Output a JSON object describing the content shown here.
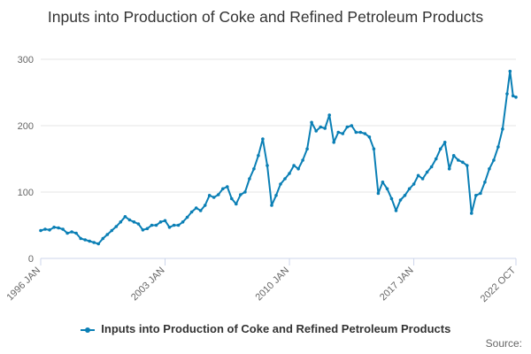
{
  "colors": {
    "series": "#0a7fb5",
    "grid": "#e6e6e6",
    "axis": "#ccd6eb",
    "text": "#333333",
    "muted": "#666666"
  },
  "source_label": "Source:",
  "chart_data": {
    "type": "line",
    "title": "Inputs into Production of Coke and Refined Petroleum Products",
    "xlabel": "",
    "ylabel": "",
    "x_ticks": [
      "1996 JAN",
      "2003 JAN",
      "2010 JAN",
      "2017 JAN",
      "2022 OCT"
    ],
    "x_range": [
      "1996 JAN",
      "2022 OCT"
    ],
    "y_ticks": [
      0,
      100,
      200,
      300
    ],
    "ylim": [
      0,
      300
    ],
    "grid": true,
    "legend_position": "bottom",
    "series": [
      {
        "name": "Inputs into Production of Coke and Refined Petroleum Products",
        "points": [
          [
            "1996-01",
            42
          ],
          [
            "1996-04",
            44
          ],
          [
            "1996-07",
            43
          ],
          [
            "1996-10",
            47
          ],
          [
            "1997-01",
            46
          ],
          [
            "1997-04",
            44
          ],
          [
            "1997-07",
            38
          ],
          [
            "1997-10",
            40
          ],
          [
            "1998-01",
            38
          ],
          [
            "1998-04",
            30
          ],
          [
            "1998-07",
            28
          ],
          [
            "1998-10",
            26
          ],
          [
            "1999-01",
            24
          ],
          [
            "1999-04",
            22
          ],
          [
            "1999-07",
            30
          ],
          [
            "1999-10",
            36
          ],
          [
            "2000-01",
            42
          ],
          [
            "2000-04",
            48
          ],
          [
            "2000-07",
            55
          ],
          [
            "2000-10",
            63
          ],
          [
            "2001-01",
            58
          ],
          [
            "2001-04",
            55
          ],
          [
            "2001-07",
            52
          ],
          [
            "2001-10",
            43
          ],
          [
            "2002-01",
            45
          ],
          [
            "2002-04",
            50
          ],
          [
            "2002-07",
            50
          ],
          [
            "2002-10",
            55
          ],
          [
            "2003-01",
            57
          ],
          [
            "2003-04",
            47
          ],
          [
            "2003-07",
            50
          ],
          [
            "2003-10",
            50
          ],
          [
            "2004-01",
            55
          ],
          [
            "2004-04",
            62
          ],
          [
            "2004-07",
            70
          ],
          [
            "2004-10",
            76
          ],
          [
            "2005-01",
            72
          ],
          [
            "2005-04",
            80
          ],
          [
            "2005-07",
            95
          ],
          [
            "2005-10",
            92
          ],
          [
            "2006-01",
            96
          ],
          [
            "2006-04",
            105
          ],
          [
            "2006-07",
            108
          ],
          [
            "2006-10",
            90
          ],
          [
            "2007-01",
            82
          ],
          [
            "2007-04",
            96
          ],
          [
            "2007-07",
            100
          ],
          [
            "2007-10",
            120
          ],
          [
            "2008-01",
            135
          ],
          [
            "2008-04",
            155
          ],
          [
            "2008-07",
            180
          ],
          [
            "2008-10",
            140
          ],
          [
            "2009-01",
            80
          ],
          [
            "2009-04",
            95
          ],
          [
            "2009-07",
            112
          ],
          [
            "2009-10",
            120
          ],
          [
            "2010-01",
            128
          ],
          [
            "2010-04",
            140
          ],
          [
            "2010-07",
            135
          ],
          [
            "2010-10",
            148
          ],
          [
            "2011-01",
            165
          ],
          [
            "2011-04",
            205
          ],
          [
            "2011-07",
            192
          ],
          [
            "2011-10",
            198
          ],
          [
            "2012-01",
            196
          ],
          [
            "2012-04",
            216
          ],
          [
            "2012-07",
            175
          ],
          [
            "2012-10",
            190
          ],
          [
            "2013-01",
            188
          ],
          [
            "2013-04",
            198
          ],
          [
            "2013-07",
            200
          ],
          [
            "2013-10",
            190
          ],
          [
            "2014-01",
            190
          ],
          [
            "2014-04",
            188
          ],
          [
            "2014-07",
            183
          ],
          [
            "2014-10",
            165
          ],
          [
            "2015-01",
            98
          ],
          [
            "2015-04",
            115
          ],
          [
            "2015-07",
            105
          ],
          [
            "2015-10",
            90
          ],
          [
            "2016-01",
            72
          ],
          [
            "2016-04",
            88
          ],
          [
            "2016-07",
            95
          ],
          [
            "2016-10",
            105
          ],
          [
            "2017-01",
            112
          ],
          [
            "2017-04",
            125
          ],
          [
            "2017-07",
            120
          ],
          [
            "2017-10",
            130
          ],
          [
            "2018-01",
            138
          ],
          [
            "2018-04",
            150
          ],
          [
            "2018-07",
            165
          ],
          [
            "2018-10",
            175
          ],
          [
            "2019-01",
            135
          ],
          [
            "2019-04",
            155
          ],
          [
            "2019-07",
            148
          ],
          [
            "2019-10",
            145
          ],
          [
            "2020-01",
            140
          ],
          [
            "2020-04",
            68
          ],
          [
            "2020-07",
            95
          ],
          [
            "2020-10",
            98
          ],
          [
            "2021-01",
            115
          ],
          [
            "2021-04",
            135
          ],
          [
            "2021-07",
            148
          ],
          [
            "2021-10",
            168
          ],
          [
            "2022-01",
            195
          ],
          [
            "2022-04",
            248
          ],
          [
            "2022-06",
            282
          ],
          [
            "2022-08",
            245
          ],
          [
            "2022-10",
            243
          ]
        ]
      }
    ]
  }
}
